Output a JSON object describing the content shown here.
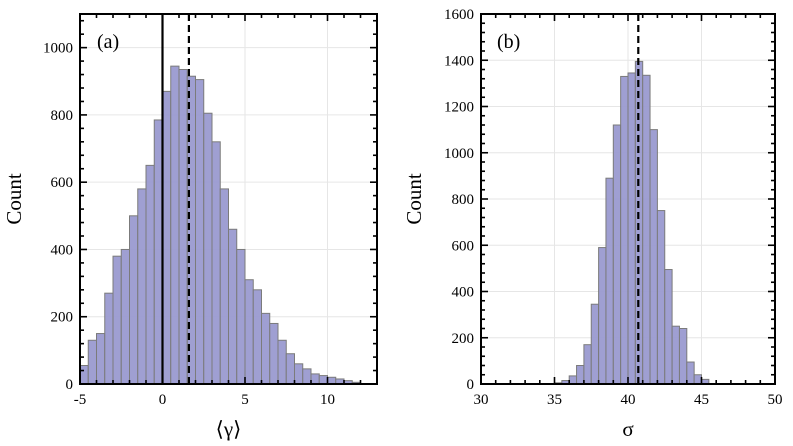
{
  "chart_data": [
    {
      "type": "bar",
      "panel_label": "(a)",
      "xlabel": "⟨γ⟩",
      "ylabel": "Count",
      "xlim": [
        -5,
        13
      ],
      "ylim": [
        0,
        1100
      ],
      "xticks": [
        -5,
        0,
        5,
        10
      ],
      "yticks": [
        0,
        200,
        400,
        600,
        800,
        1000
      ],
      "grid": true,
      "bin_width": 0.5,
      "bins": [
        {
          "x0": -5.0,
          "count": 55
        },
        {
          "x0": -4.5,
          "count": 130
        },
        {
          "x0": -4.0,
          "count": 150
        },
        {
          "x0": -3.5,
          "count": 270
        },
        {
          "x0": -3.0,
          "count": 380
        },
        {
          "x0": -2.5,
          "count": 400
        },
        {
          "x0": -2.0,
          "count": 500
        },
        {
          "x0": -1.5,
          "count": 580
        },
        {
          "x0": -1.0,
          "count": 650
        },
        {
          "x0": -0.5,
          "count": 785
        },
        {
          "x0": 0.0,
          "count": 870
        },
        {
          "x0": 0.5,
          "count": 945
        },
        {
          "x0": 1.0,
          "count": 935
        },
        {
          "x0": 1.5,
          "count": 915
        },
        {
          "x0": 2.0,
          "count": 905
        },
        {
          "x0": 2.5,
          "count": 805
        },
        {
          "x0": 3.0,
          "count": 720
        },
        {
          "x0": 3.5,
          "count": 580
        },
        {
          "x0": 4.0,
          "count": 460
        },
        {
          "x0": 4.5,
          "count": 400
        },
        {
          "x0": 5.0,
          "count": 310
        },
        {
          "x0": 5.5,
          "count": 280
        },
        {
          "x0": 6.0,
          "count": 210
        },
        {
          "x0": 6.5,
          "count": 180
        },
        {
          "x0": 7.0,
          "count": 130
        },
        {
          "x0": 7.5,
          "count": 90
        },
        {
          "x0": 8.0,
          "count": 60
        },
        {
          "x0": 8.5,
          "count": 45
        },
        {
          "x0": 9.0,
          "count": 30
        },
        {
          "x0": 9.5,
          "count": 25
        },
        {
          "x0": 10.0,
          "count": 20
        },
        {
          "x0": 10.5,
          "count": 15
        },
        {
          "x0": 11.0,
          "count": 10
        },
        {
          "x0": 11.5,
          "count": 5
        }
      ],
      "vlines": [
        {
          "x": 0,
          "style": "solid"
        },
        {
          "x": 1.6,
          "style": "dashed"
        }
      ]
    },
    {
      "type": "bar",
      "panel_label": "(b)",
      "xlabel": "σ",
      "ylabel": "Count",
      "xlim": [
        30,
        50
      ],
      "ylim": [
        0,
        1600
      ],
      "xticks": [
        30,
        35,
        40,
        45,
        50
      ],
      "yticks": [
        0,
        200,
        400,
        600,
        800,
        1000,
        1200,
        1400,
        1600
      ],
      "grid": true,
      "bin_width": 0.5,
      "bins": [
        {
          "x0": 35.0,
          "count": 5
        },
        {
          "x0": 35.5,
          "count": 15
        },
        {
          "x0": 36.0,
          "count": 35
        },
        {
          "x0": 36.5,
          "count": 80
        },
        {
          "x0": 37.0,
          "count": 170
        },
        {
          "x0": 37.5,
          "count": 345
        },
        {
          "x0": 38.0,
          "count": 590
        },
        {
          "x0": 38.5,
          "count": 890
        },
        {
          "x0": 39.0,
          "count": 1120
        },
        {
          "x0": 39.5,
          "count": 1330
        },
        {
          "x0": 40.0,
          "count": 1345
        },
        {
          "x0": 40.5,
          "count": 1395
        },
        {
          "x0": 41.0,
          "count": 1335
        },
        {
          "x0": 41.5,
          "count": 1100
        },
        {
          "x0": 42.0,
          "count": 750
        },
        {
          "x0": 42.5,
          "count": 495
        },
        {
          "x0": 43.0,
          "count": 250
        },
        {
          "x0": 43.5,
          "count": 240
        },
        {
          "x0": 44.0,
          "count": 95
        },
        {
          "x0": 44.5,
          "count": 40
        },
        {
          "x0": 45.0,
          "count": 20
        }
      ],
      "vlines": [
        {
          "x": 40.7,
          "style": "dashed"
        }
      ]
    }
  ]
}
